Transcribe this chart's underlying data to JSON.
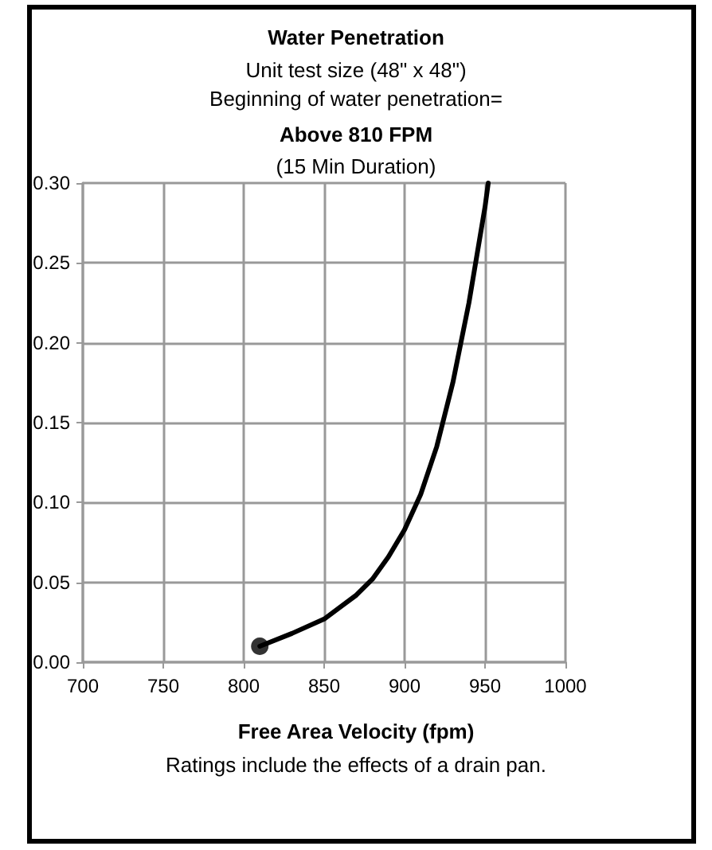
{
  "chart_data": {
    "type": "line",
    "title": "Water Penetration",
    "subtitle": "Unit test size (48\" x 48\")\nBeginning of water penetration=",
    "xlabel": "Free Area Velocity (fpm)",
    "annotations": [
      "Above 810 FPM",
      "(15 Min Duration)",
      "Ratings include the effects of a drain pan."
    ],
    "series": [
      {
        "color": "#000000",
        "x": [
          810,
          830,
          850,
          870,
          880,
          890,
          900,
          910,
          920,
          930,
          940,
          950,
          952
        ],
        "values": [
          0.01,
          0.018,
          0.027,
          0.042,
          0.052,
          0.066,
          0.083,
          0.105,
          0.135,
          0.175,
          0.225,
          0.285,
          0.3
        ],
        "marker": "none",
        "line_style": "solid"
      },
      {
        "type": "scatter",
        "color": "#000000",
        "x": [
          810
        ],
        "values": [
          0.01
        ],
        "marker": "circle"
      }
    ],
    "xlim": [
      700,
      1000
    ],
    "xticks": [
      700,
      750,
      800,
      850,
      900,
      950,
      1000
    ],
    "ylim": [
      0,
      0.3
    ],
    "yticks": [
      {
        "value": 0,
        "label": "0.00"
      },
      {
        "value": 0.05,
        "label": "0.05"
      },
      {
        "value": 0.1,
        "label": "0.10"
      },
      {
        "value": 0.15,
        "label": "0.15"
      },
      {
        "value": 0.2,
        "label": "0.20"
      },
      {
        "value": 0.25,
        "label": "0.25"
      },
      {
        "value": 0.3,
        "label": "0.30"
      }
    ],
    "grid": true
  }
}
